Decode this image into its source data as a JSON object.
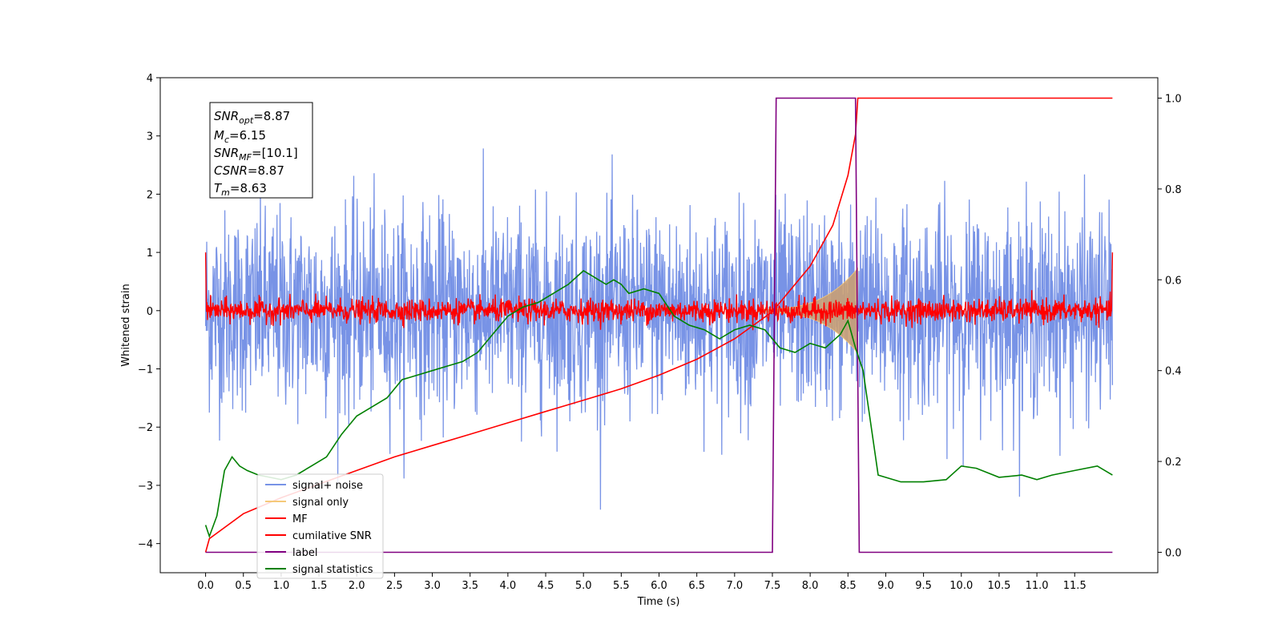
{
  "chart_data": {
    "type": "line",
    "xlabel": "Time (s)",
    "ylabel": "Whitened strain",
    "xlim": [
      -0.6,
      12.6
    ],
    "ylim": [
      -4.5,
      4.0
    ],
    "y2lim": [
      -0.045,
      1.045
    ],
    "xticks": [
      "0.0",
      "0.5",
      "1.0",
      "1.5",
      "2.0",
      "2.5",
      "3.0",
      "3.5",
      "4.0",
      "4.5",
      "5.0",
      "5.5",
      "6.0",
      "6.5",
      "7.0",
      "7.5",
      "8.0",
      "8.5",
      "9.0",
      "9.5",
      "10.0",
      "10.5",
      "11.0",
      "11.5"
    ],
    "yticks": [
      "4",
      "3",
      "2",
      "1",
      "0",
      "−1",
      "−2",
      "−3",
      "−4"
    ],
    "y2ticks": [
      "1.0",
      "0.8",
      "0.6",
      "0.4",
      "0.2",
      "0.0"
    ],
    "legend_position": "lower-left",
    "stats": {
      "snr_opt_label": "SNR",
      "snr_opt_sub": "opt",
      "snr_opt_value": "=8.87",
      "mc_label": "M",
      "mc_sub": "c",
      "mc_value": "=6.15",
      "snr_mf_label": "SNR",
      "snr_mf_sub": "MF",
      "snr_mf_value": "=[10.1]",
      "csnr_label": "CSNR",
      "csnr_value": "=8.87",
      "tm_label": "T",
      "tm_sub": "m",
      "tm_value": "=8.63"
    },
    "series": [
      {
        "name": "signal+ noise",
        "color": "#7893e6",
        "axis": "left",
        "style": "noise",
        "x_range": [
          0,
          12.0
        ],
        "envelope_lo": [
          -2.2,
          -1.5,
          -1.2
        ],
        "envelope_hi": [
          1.8,
          2.4,
          3.6
        ]
      },
      {
        "name": "signal only",
        "color": "#f5c97a",
        "axis": "left",
        "style": "chirp",
        "x_range": [
          7.3,
          8.63
        ],
        "amplitude_max": 0.7
      },
      {
        "name": "MF",
        "color": "#ff0000",
        "axis": "left",
        "style": "noise-small",
        "x_range": [
          0,
          12.0
        ],
        "amplitude": 0.22
      },
      {
        "name": "cumilative SNR",
        "color": "#ff0000",
        "axis": "right",
        "x": [
          0.0,
          0.05,
          0.5,
          1.0,
          1.5,
          2.0,
          2.5,
          3.0,
          3.5,
          4.0,
          4.5,
          5.0,
          5.5,
          6.0,
          6.5,
          7.0,
          7.5,
          8.0,
          8.3,
          8.5,
          8.6,
          8.63,
          9.0,
          10.0,
          11.0,
          12.0
        ],
        "y": [
          0.0,
          0.03,
          0.085,
          0.12,
          0.15,
          0.18,
          0.21,
          0.235,
          0.26,
          0.285,
          0.31,
          0.335,
          0.36,
          0.39,
          0.425,
          0.47,
          0.53,
          0.63,
          0.72,
          0.83,
          0.92,
          1.0,
          1.0,
          1.0,
          1.0,
          1.0
        ]
      },
      {
        "name": "label",
        "color": "#800080",
        "axis": "right",
        "x": [
          0.0,
          7.5,
          7.55,
          8.6,
          8.65,
          12.0
        ],
        "y": [
          0.0,
          0.0,
          1.0,
          1.0,
          0.0,
          0.0
        ]
      },
      {
        "name": "signal statistics",
        "color": "#008000",
        "axis": "right",
        "x": [
          0.0,
          0.05,
          0.15,
          0.25,
          0.35,
          0.45,
          0.55,
          0.7,
          0.85,
          1.0,
          1.2,
          1.4,
          1.6,
          1.8,
          2.0,
          2.2,
          2.4,
          2.6,
          2.8,
          3.0,
          3.2,
          3.4,
          3.6,
          3.8,
          4.0,
          4.2,
          4.4,
          4.6,
          4.8,
          5.0,
          5.1,
          5.2,
          5.3,
          5.4,
          5.5,
          5.6,
          5.8,
          6.0,
          6.2,
          6.4,
          6.6,
          6.8,
          7.0,
          7.2,
          7.4,
          7.6,
          7.8,
          8.0,
          8.2,
          8.4,
          8.5,
          8.6,
          8.7,
          8.9,
          9.2,
          9.5,
          9.8,
          10.0,
          10.2,
          10.5,
          10.8,
          11.0,
          11.2,
          11.5,
          11.8,
          12.0
        ],
        "y": [
          0.06,
          0.035,
          0.08,
          0.18,
          0.21,
          0.19,
          0.18,
          0.17,
          0.165,
          0.16,
          0.17,
          0.19,
          0.21,
          0.26,
          0.3,
          0.32,
          0.34,
          0.38,
          0.39,
          0.4,
          0.41,
          0.42,
          0.44,
          0.48,
          0.52,
          0.54,
          0.55,
          0.57,
          0.59,
          0.62,
          0.61,
          0.6,
          0.59,
          0.6,
          0.59,
          0.57,
          0.58,
          0.57,
          0.52,
          0.5,
          0.49,
          0.47,
          0.49,
          0.5,
          0.49,
          0.45,
          0.44,
          0.46,
          0.45,
          0.48,
          0.51,
          0.45,
          0.4,
          0.17,
          0.155,
          0.155,
          0.16,
          0.19,
          0.185,
          0.165,
          0.17,
          0.16,
          0.17,
          0.18,
          0.19,
          0.17
        ]
      }
    ]
  }
}
